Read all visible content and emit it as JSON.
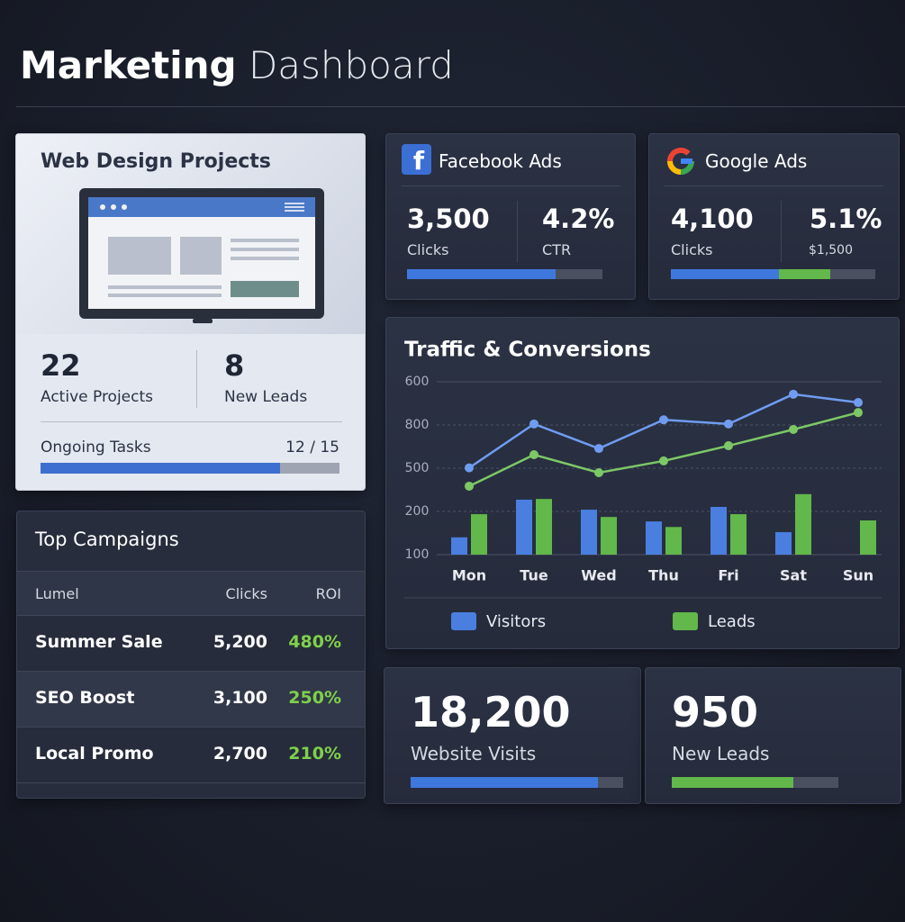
{
  "header": {
    "title_strong": "Marketing",
    "title_rest": "Dashboard"
  },
  "web_design": {
    "title": "Web Design Projects",
    "stats": [
      {
        "value": "22",
        "label": "Active Projects"
      },
      {
        "value": "8",
        "label": "New Leads"
      }
    ],
    "tasks": {
      "label": "Ongoing Tasks",
      "done": 12,
      "separator": "/",
      "total": 15
    }
  },
  "facebook_ads": {
    "title": "Facebook Ads",
    "metrics": [
      {
        "value": "3,500",
        "label": "Clicks"
      },
      {
        "value": "4.2%",
        "label": "CTR"
      }
    ],
    "progress": [
      0.76
    ]
  },
  "google_ads": {
    "title": "Google Ads",
    "metrics": [
      {
        "value": "4,100",
        "label": "Clicks"
      },
      {
        "value": "5.1%",
        "label": "$1,500"
      }
    ],
    "progress": [
      0.53,
      0.25
    ]
  },
  "top_campaigns": {
    "title": "Top Campaigns",
    "columns": [
      "Lumel",
      "Clicks",
      "ROI"
    ],
    "rows": [
      [
        "Summer Sale",
        "5,200",
        "480%"
      ],
      [
        "SEO Boost",
        "3,100",
        "250%"
      ],
      [
        "Local Promo",
        "2,700",
        "210%"
      ]
    ]
  },
  "totals": [
    {
      "value": "18,200",
      "label": "Website Visits",
      "progress": 0.88,
      "color": "#3f78dd"
    },
    {
      "value": "950",
      "label": "New Leads",
      "progress": 0.73,
      "color": "#62b84a"
    }
  ],
  "chart_data": {
    "type": "combo",
    "title": "Traffic & Conversions",
    "categories": [
      "Mon",
      "Tue",
      "Wed",
      "Thu",
      "Fri",
      "Sat",
      "Sun"
    ],
    "ylim": [
      100,
      600
    ],
    "yticks": [
      100,
      600
    ],
    "extra_y_labels": [
      "800",
      "500",
      "200"
    ],
    "series": [
      {
        "name": "Visitors",
        "color": "#4a7fe0",
        "line_color": "#6f9cf0",
        "values": [
          150,
          259,
          230,
          196,
          238,
          165,
          null
        ],
        "line_values": [
          351,
          478,
          407,
          490,
          478,
          564,
          540
        ]
      },
      {
        "name": "Leads",
        "color": "#62b84a",
        "line_color": "#7cc866",
        "values": [
          217,
          261,
          209,
          180,
          217,
          275,
          199
        ],
        "line_values": [
          298,
          389,
          337,
          371,
          415,
          462,
          511
        ]
      }
    ]
  }
}
